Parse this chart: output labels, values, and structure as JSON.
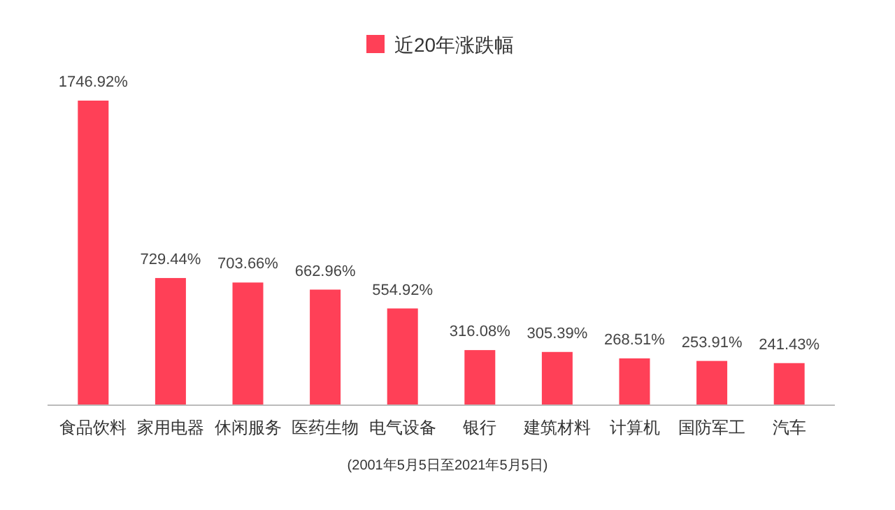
{
  "chart_data": {
    "type": "bar",
    "categories": [
      "食品饮料",
      "家用电器",
      "休闲服务",
      "医药生物",
      "电气设备",
      "银行",
      "建筑材料",
      "计算机",
      "国防军工",
      "汽车"
    ],
    "series": [
      {
        "name": "近20年涨跌幅",
        "color": "#ff4057",
        "values": [
          1746.92,
          729.44,
          703.66,
          662.96,
          554.92,
          316.08,
          305.39,
          268.51,
          253.91,
          241.43
        ],
        "value_labels": [
          "1746.92%",
          "729.44%",
          "703.66%",
          "662.96%",
          "554.92%",
          "316.08%",
          "305.39%",
          "268.51%",
          "253.91%",
          "241.43%"
        ]
      }
    ],
    "legend": "top",
    "annotations": [
      "(2001年5月5日至2021年5月5日)"
    ]
  }
}
